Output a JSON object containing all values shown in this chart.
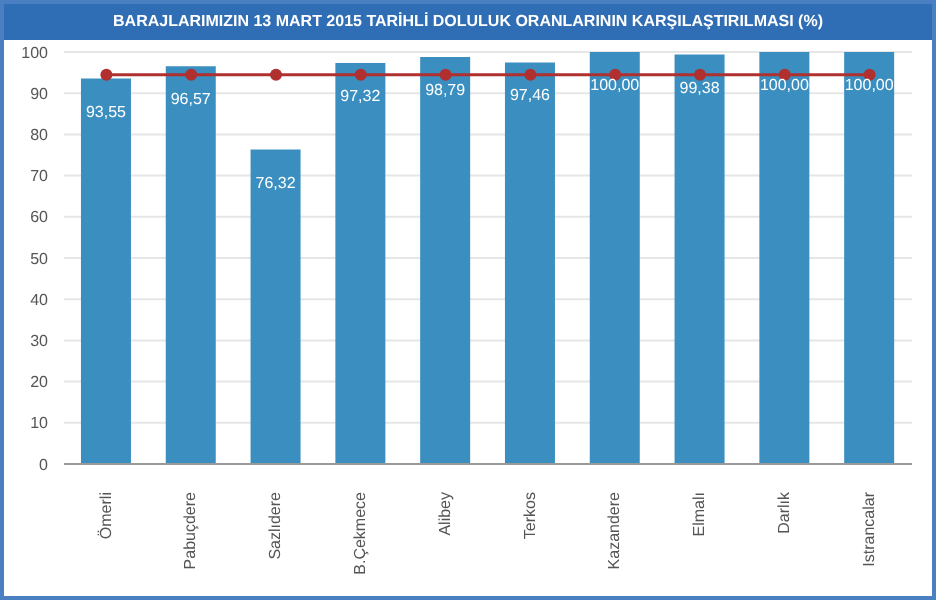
{
  "chart_data": {
    "type": "bar",
    "title": "BARAJLARIMIZIN 13 MART 2015 TARİHLİ DOLULUK ORANLARININ KARŞILAŞTIRILMASI (%)",
    "categories": [
      "Ömerli",
      "Pabuçdere",
      "Sazlıdere",
      "B.Çekmece",
      "Alibey",
      "Terkos",
      "Kazandere",
      "Elmalı",
      "Darlık",
      "Istrancalar"
    ],
    "series": [
      {
        "color": "#3a8fc0",
        "values": [
          93.55,
          96.57,
          76.32,
          97.32,
          98.79,
          97.46,
          100,
          99.38,
          100,
          100
        ],
        "value_labels": [
          "93,55",
          "96,57",
          "76,32",
          "97,32",
          "98,79",
          "97,46",
          "100,00",
          "99,38",
          "100,00",
          "100,00"
        ]
      },
      {
        "type": "line",
        "color": "#b03030",
        "marker": "circle",
        "values": [
          94.5,
          94.5,
          94.5,
          94.5,
          94.5,
          94.5,
          94.5,
          94.5,
          94.5,
          94.5
        ]
      }
    ],
    "ylim": [
      0,
      100
    ],
    "yticks": [
      0,
      10,
      20,
      30,
      40,
      50,
      60,
      70,
      80,
      90,
      100
    ],
    "grid": "y"
  }
}
